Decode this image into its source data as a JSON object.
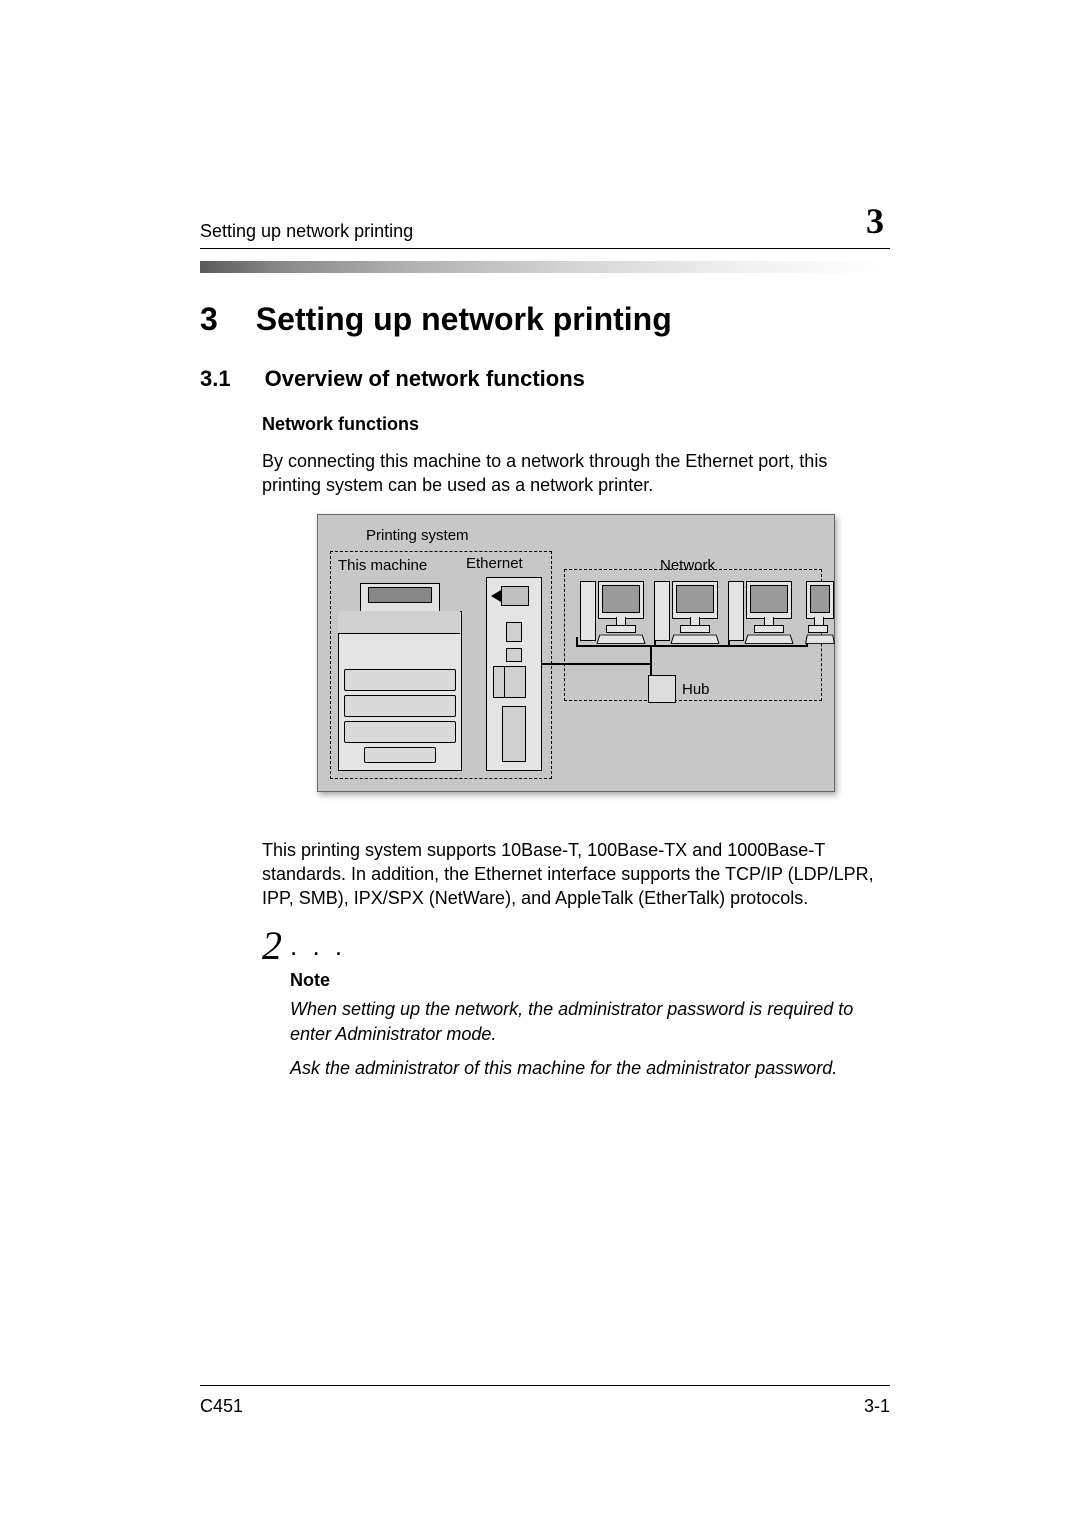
{
  "header": {
    "running_title": "Setting up network printing",
    "chapter_number": "3"
  },
  "style": {
    "page_bg": "#ffffff",
    "text_color": "#000000",
    "gradient_from": "#5a5a5a",
    "gradient_to": "#ffffff",
    "diagram_bg": "#c7c7c7",
    "diagram_border": "#666666",
    "device_fill": "#e4e4e4",
    "screen_fill": "#9a9a9a",
    "body_fontsize_pt": 13,
    "h1_fontsize_pt": 24,
    "h2_fontsize_pt": 16,
    "h3_fontsize_pt": 13,
    "note_icon_fontsize_pt": 30
  },
  "h1": {
    "number": "3",
    "title": "Setting up network printing"
  },
  "h2": {
    "number": "3.1",
    "title": "Overview of network functions"
  },
  "h3": {
    "title": "Network functions"
  },
  "para1": "By connecting this machine to a network through the Ethernet port, this printing system can be used as a network printer.",
  "diagram": {
    "labels": {
      "printing_system": "Printing system",
      "this_machine": "This machine",
      "ethernet": "Ethernet",
      "network": "Network",
      "hub": "Hub"
    },
    "type": "network-topology",
    "nodes": {
      "mfp": "multifunction-printer",
      "server": "print-server",
      "hub": "hub",
      "workstations": 4
    }
  },
  "para2": "This printing system supports 10Base-T, 100Base-TX and 1000Base-T standards. In addition, the Ethernet interface supports the TCP/IP (LDP/LPR, IPP, SMB), IPX/SPX (NetWare), and AppleTalk (EtherTalk) protocols.",
  "note": {
    "icon": "2",
    "dots": ". . .",
    "label": "Note",
    "line1": "When setting up the network, the administrator password is required to enter Administrator mode.",
    "line2": "Ask the administrator of this machine for the administrator password."
  },
  "footer": {
    "model": "C451",
    "page": "3-1"
  }
}
